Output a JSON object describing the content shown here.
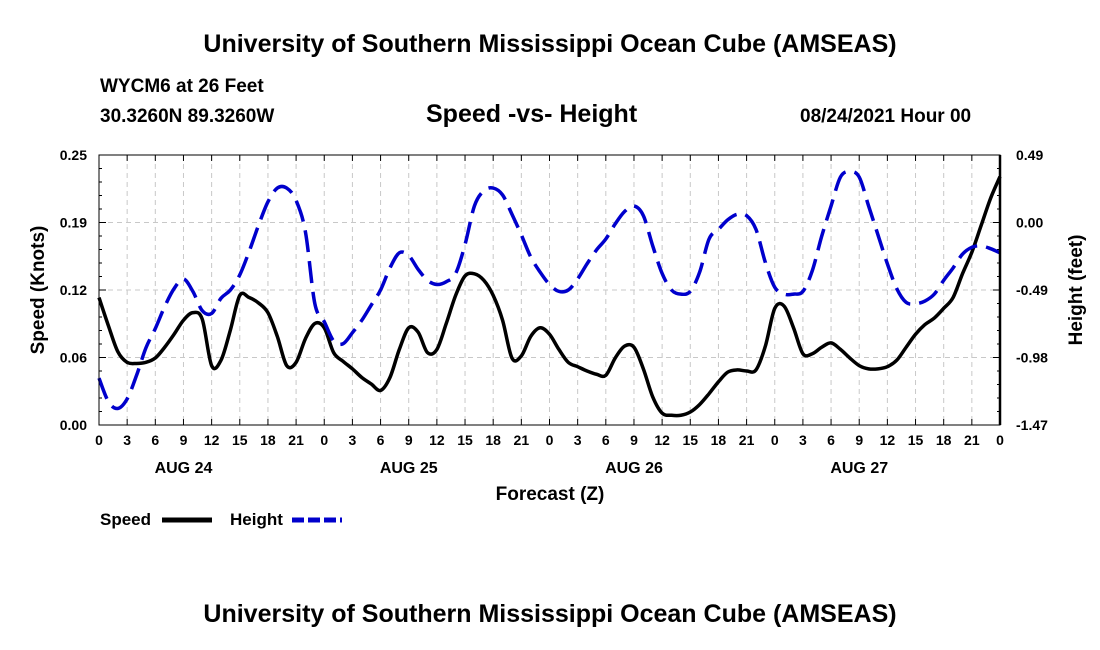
{
  "header": {
    "title": "University of Southern Mississippi Ocean Cube (AMSEAS)",
    "station": "WYCM6 at 26 Feet",
    "coordinates": "30.3260N  89.3260W",
    "chart_title": "Speed -vs- Height",
    "datetime": "08/24/2021 Hour 00"
  },
  "footer": {
    "title": "University of Southern Mississippi Ocean Cube (AMSEAS)"
  },
  "chart_data": {
    "type": "line",
    "title": "Speed -vs- Height",
    "xlabel": "Forecast (Z)",
    "ylabel": "Speed (Knots)",
    "y2label": "Height (feet)",
    "xlim": [
      0,
      96
    ],
    "ylim": [
      0,
      0.25
    ],
    "y2lim": [
      -1.47,
      0.49
    ],
    "grid": true,
    "legend_position": "bottom-left",
    "x_tick_labels": [
      "0",
      "3",
      "6",
      "9",
      "12",
      "15",
      "18",
      "21",
      "0",
      "3",
      "6",
      "9",
      "12",
      "15",
      "18",
      "21",
      "0",
      "3",
      "6",
      "9",
      "12",
      "15",
      "18",
      "21",
      "0",
      "3",
      "6",
      "9",
      "12",
      "15",
      "18",
      "21",
      "0"
    ],
    "y_tick_labels": [
      "0.00",
      "0.06",
      "0.12",
      "0.19",
      "0.25"
    ],
    "y2_tick_labels": [
      "-1.47",
      "-0.98",
      "-0.49",
      "0.00",
      "0.49"
    ],
    "day_labels": [
      {
        "label": "AUG 24",
        "x": 9
      },
      {
        "label": "AUG 25",
        "x": 33
      },
      {
        "label": "AUG 26",
        "x": 57
      },
      {
        "label": "AUG 27",
        "x": 81
      }
    ],
    "series": [
      {
        "name": "Speed",
        "axis": "left",
        "color": "#000000",
        "dash": "solid",
        "x": [
          0,
          1,
          2,
          3,
          4,
          5,
          6,
          7,
          8,
          9,
          10,
          11,
          12,
          13,
          14,
          15,
          16,
          17,
          18,
          19,
          20,
          21,
          22,
          23,
          24,
          25,
          26,
          27,
          28,
          29,
          30,
          31,
          32,
          33,
          34,
          35,
          36,
          37,
          38,
          39,
          40,
          41,
          42,
          43,
          44,
          45,
          46,
          47,
          48,
          49,
          50,
          51,
          52,
          53,
          54,
          55,
          56,
          57,
          58,
          59,
          60,
          61,
          62,
          63,
          64,
          65,
          66,
          67,
          68,
          69,
          70,
          71,
          72,
          73,
          74,
          75,
          76,
          77,
          78,
          79,
          80,
          81,
          82,
          83,
          84,
          85,
          86,
          87,
          88,
          89,
          90,
          91,
          92,
          93,
          94,
          95,
          96
        ],
        "values": [
          0.118,
          0.092,
          0.068,
          0.058,
          0.057,
          0.058,
          0.062,
          0.072,
          0.084,
          0.097,
          0.104,
          0.098,
          0.055,
          0.06,
          0.088,
          0.12,
          0.118,
          0.113,
          0.104,
          0.082,
          0.055,
          0.058,
          0.08,
          0.094,
          0.09,
          0.067,
          0.059,
          0.052,
          0.044,
          0.038,
          0.032,
          0.044,
          0.07,
          0.09,
          0.086,
          0.067,
          0.07,
          0.094,
          0.12,
          0.138,
          0.14,
          0.134,
          0.12,
          0.097,
          0.062,
          0.064,
          0.082,
          0.09,
          0.084,
          0.07,
          0.058,
          0.054,
          0.05,
          0.047,
          0.046,
          0.062,
          0.073,
          0.072,
          0.052,
          0.026,
          0.011,
          0.009,
          0.009,
          0.012,
          0.019,
          0.029,
          0.04,
          0.049,
          0.051,
          0.05,
          0.051,
          0.073,
          0.108,
          0.11,
          0.09,
          0.066,
          0.066,
          0.072,
          0.076,
          0.07,
          0.062,
          0.055,
          0.052,
          0.052,
          0.054,
          0.06,
          0.072,
          0.084,
          0.093,
          0.099,
          0.108,
          0.118,
          0.14,
          0.16,
          0.185,
          0.21,
          0.23
        ]
      },
      {
        "name": "Height",
        "axis": "right",
        "color": "#0000cc",
        "dash": "dashed",
        "x": [
          0,
          1,
          2,
          3,
          4,
          5,
          6,
          7,
          8,
          9,
          10,
          11,
          12,
          13,
          14,
          15,
          16,
          17,
          18,
          19,
          20,
          21,
          22,
          23,
          24,
          25,
          26,
          27,
          28,
          29,
          30,
          31,
          32,
          33,
          34,
          35,
          36,
          37,
          38,
          39,
          40,
          41,
          42,
          43,
          44,
          45,
          46,
          47,
          48,
          49,
          50,
          51,
          52,
          53,
          54,
          55,
          56,
          57,
          58,
          59,
          60,
          61,
          62,
          63,
          64,
          65,
          66,
          67,
          68,
          69,
          70,
          71,
          72,
          73,
          74,
          75,
          76,
          77,
          78,
          79,
          80,
          81,
          82,
          83,
          84,
          85,
          86,
          87,
          88,
          89,
          90,
          91,
          92,
          93,
          94,
          95,
          96
        ],
        "values": [
          -1.13,
          -1.3,
          -1.35,
          -1.28,
          -1.11,
          -0.91,
          -0.77,
          -0.61,
          -0.48,
          -0.41,
          -0.5,
          -0.64,
          -0.66,
          -0.55,
          -0.49,
          -0.38,
          -0.21,
          -0.02,
          0.15,
          0.25,
          0.25,
          0.16,
          -0.07,
          -0.59,
          -0.72,
          -0.86,
          -0.88,
          -0.8,
          -0.71,
          -0.6,
          -0.49,
          -0.33,
          -0.22,
          -0.24,
          -0.34,
          -0.42,
          -0.45,
          -0.43,
          -0.37,
          -0.16,
          0.12,
          0.23,
          0.25,
          0.2,
          0.06,
          -0.09,
          -0.25,
          -0.36,
          -0.45,
          -0.5,
          -0.49,
          -0.41,
          -0.3,
          -0.2,
          -0.12,
          -0.01,
          0.08,
          0.12,
          0.05,
          -0.17,
          -0.37,
          -0.49,
          -0.52,
          -0.5,
          -0.36,
          -0.12,
          -0.05,
          0.02,
          0.06,
          0.05,
          -0.05,
          -0.29,
          -0.47,
          -0.52,
          -0.52,
          -0.5,
          -0.35,
          -0.1,
          0.12,
          0.33,
          0.37,
          0.33,
          0.12,
          -0.09,
          -0.3,
          -0.48,
          -0.58,
          -0.59,
          -0.57,
          -0.52,
          -0.42,
          -0.33,
          -0.23,
          -0.18,
          -0.17,
          -0.19,
          -0.22
        ]
      }
    ]
  }
}
